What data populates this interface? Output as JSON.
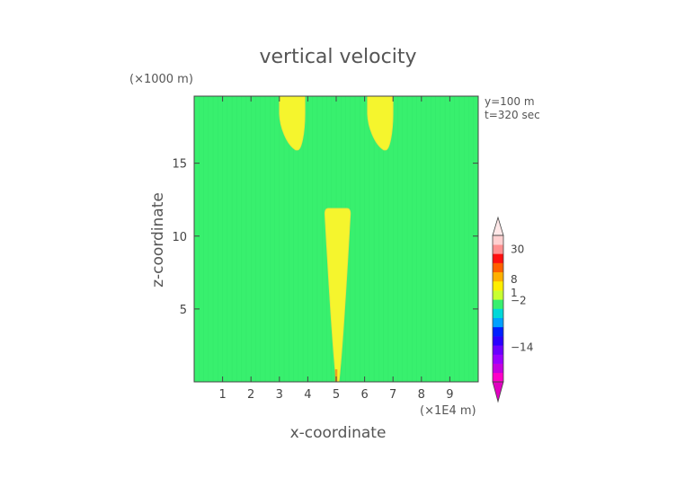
{
  "chart_data": {
    "type": "heatmap",
    "title": "vertical velocity",
    "xlabel": "x-coordinate",
    "ylabel": "z-coordinate",
    "x_unit": "(×1E4 m)",
    "y_unit": "(×1000 m)",
    "annotations": [
      "y=100 m",
      "t=320 sec"
    ],
    "xlim": [
      0,
      10
    ],
    "ylim": [
      0,
      19.6
    ],
    "x_ticks": [
      1,
      2,
      3,
      4,
      5,
      6,
      7,
      8,
      9
    ],
    "y_ticks": [
      5,
      10,
      15
    ],
    "grid": false,
    "colors": {
      "background_field": "#38f06e",
      "positive_region": "#f5f52d",
      "frame": "#444444",
      "text": "#555555"
    },
    "regions": [
      {
        "name": "updraft-left-top",
        "level_range": [
          1,
          8
        ],
        "x": [
          3.0,
          3.9
        ],
        "z_top": 19.6,
        "z_bottom": 15.9
      },
      {
        "name": "updraft-right-top",
        "level_range": [
          1,
          8
        ],
        "x": [
          6.1,
          7.0
        ],
        "z_top": 19.6,
        "z_bottom": 15.9
      },
      {
        "name": "central-plume",
        "level_range": [
          1,
          8
        ],
        "x": [
          4.6,
          5.5
        ],
        "z_top": 11.9,
        "z_bottom": 0.0
      }
    ],
    "colorbar": {
      "labels": [
        {
          "text": "30",
          "value": 30
        },
        {
          "text": "8",
          "value": 8
        },
        {
          "text": "1",
          "value": 1
        },
        {
          "text": "−2",
          "value": -2
        },
        {
          "text": "−14",
          "value": -14
        }
      ],
      "bands": [
        {
          "color": "#ff00c8"
        },
        {
          "color": "#c400e0"
        },
        {
          "color": "#9a00ff"
        },
        {
          "color": "#6a00ff"
        },
        {
          "color": "#2a00ff"
        },
        {
          "color": "#0020ff"
        },
        {
          "color": "#00a0ff"
        },
        {
          "color": "#00d8d8"
        },
        {
          "color": "#38f06e"
        },
        {
          "color": "#c8ff30"
        },
        {
          "color": "#ffee00"
        },
        {
          "color": "#ffb000"
        },
        {
          "color": "#ff6000"
        },
        {
          "color": "#ff1010"
        },
        {
          "color": "#ff9090"
        },
        {
          "color": "#ffd0d0"
        }
      ]
    }
  }
}
